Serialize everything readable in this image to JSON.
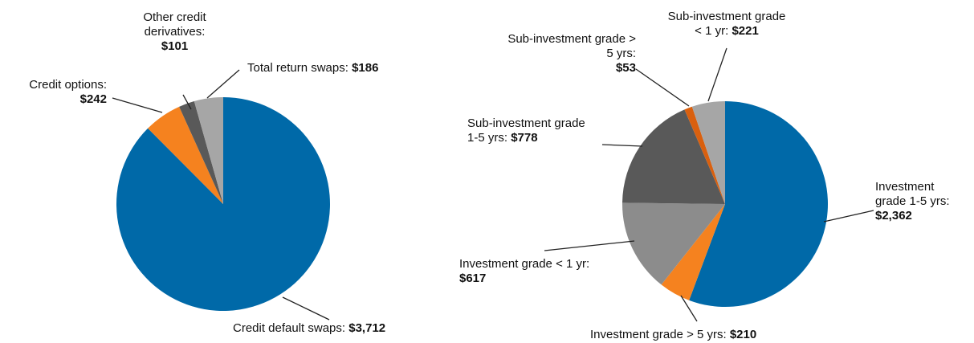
{
  "chart_data": [
    {
      "type": "pie",
      "categories": [
        "Credit default swaps:",
        "Credit options:",
        "Other credit derivatives:",
        "Total return swaps:"
      ],
      "values": [
        3712,
        242,
        101,
        186
      ],
      "value_labels": [
        "$3,712",
        "$242",
        "$101",
        "$186"
      ],
      "colors": [
        "#0069a8",
        "#f5821f",
        "#595959",
        "#a6a6a6"
      ]
    },
    {
      "type": "pie",
      "categories": [
        "Investment grade 1-5 yrs:",
        "Investment grade > 5 yrs:",
        "Investment grade < 1 yr:",
        "Sub-investment grade 1-5 yrs:",
        "Sub-investment grade > 5 yrs:",
        "Sub-investment grade < 1 yr:"
      ],
      "values": [
        2362,
        210,
        617,
        778,
        53,
        221
      ],
      "value_labels": [
        "$2,362",
        "$210",
        "$617",
        "$778",
        "$53",
        "$221"
      ],
      "colors": [
        "#0069a8",
        "#f5821f",
        "#8c8c8c",
        "#595959",
        "#d9600f",
        "#a6a6a6"
      ]
    }
  ]
}
